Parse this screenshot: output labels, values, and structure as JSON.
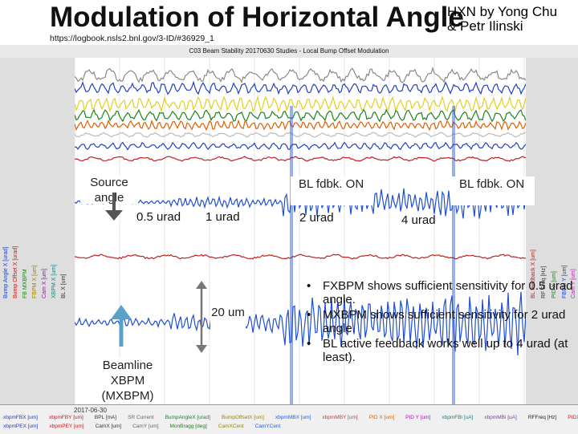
{
  "header": {
    "title": "Modulation of Horizontal Angle",
    "credit_line1": "HXN by Yong Chu",
    "credit_line2": "& Petr Ilinski",
    "url": "https://logbook.nsls2.bnl.gov/3-ID/#36929_1"
  },
  "window": {
    "title": "C03 Beam Stability 20170630 Studies - Local Bump Offset Modulation"
  },
  "axes": {
    "left_labels": [
      "Bump Angle X [urad]",
      "Bump Offset X [urad]",
      "FB MXBPM",
      "FBPM X [um]",
      "Cam X [um]",
      "XBPM X [um]",
      "BL X [um]"
    ],
    "right_labels": [
      "BL feedback X [um]",
      "RF Freq [Hz]",
      "PID X [um]",
      "FBPM Y [um]",
      "Cam Y [um]"
    ]
  },
  "legend": {
    "row1": [
      "xbpmFBX [um]",
      "xbpmFBY [um]",
      "BPL [mA]",
      "SR Current",
      "BumpAngleX [urad]",
      "BumpOffsetX [um]",
      "xbpmMBX [um]",
      "xbpmMBY [um]",
      "PID X [um]",
      "PID Y [um]",
      "xbpmFBi [uA]",
      "xbpmMBi [uA]",
      "RFFreq [Hz]",
      "PIDX On"
    ],
    "row2": [
      "xbpmPEX [um]",
      "xbpmPEY [um]",
      "CamX [um]",
      "CamY [um]",
      "MonBragg [deg]",
      "CamXCent",
      "CamYCent"
    ]
  },
  "annotations": {
    "source_angle": "Source angle",
    "a05": "0.5 urad",
    "a1": "1 urad",
    "a2": "2 urad",
    "a4": "4 urad",
    "bl_fdbk_on_1": "BL fdbk. ON",
    "bl_fdbk_on_2": "BL fdbk. ON",
    "scale_20um": "20 um",
    "beamline_xbpm": "Beamline XBPM (MXBPM)"
  },
  "bullets": [
    "FXBPM shows sufficient sensitivity for 0.5 urad angle.",
    "MXBPM shows sufficient sensitivity for 2 urad angle.",
    "BL active feedback works well up to 4 urad (at least)."
  ],
  "time_label": "2017-06-30"
}
